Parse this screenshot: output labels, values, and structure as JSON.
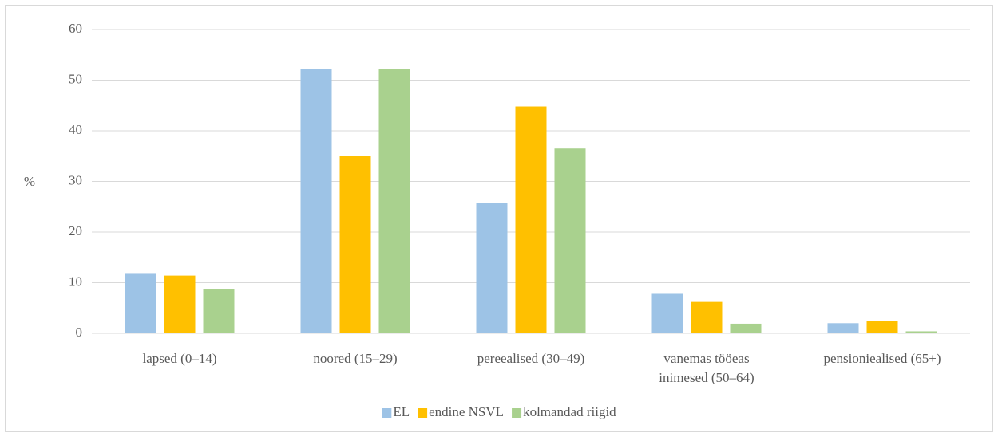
{
  "chart_data": {
    "type": "bar",
    "y_label": "%",
    "categories": [
      "lapsed (0–14)",
      "noored (15–29)",
      "pereealised (30–49)",
      "vanemas tööeas inimesed (50–64)",
      "pensioniealised (65+)"
    ],
    "series": [
      {
        "name": "EL",
        "color": "#9dc3e6",
        "values": [
          11.9,
          52.2,
          25.8,
          7.8,
          2.0
        ]
      },
      {
        "name": "endine NSVL",
        "color": "#ffc000",
        "values": [
          11.4,
          35.0,
          44.8,
          6.2,
          2.4
        ]
      },
      {
        "name": "kolmandad riigid",
        "color": "#a9d18e",
        "values": [
          8.8,
          52.2,
          36.5,
          1.9,
          0.4
        ]
      }
    ],
    "ylim": [
      0,
      60
    ],
    "yticks": [
      0,
      10,
      20,
      30,
      40,
      50,
      60
    ],
    "grid": true,
    "legend": "bottom"
  }
}
